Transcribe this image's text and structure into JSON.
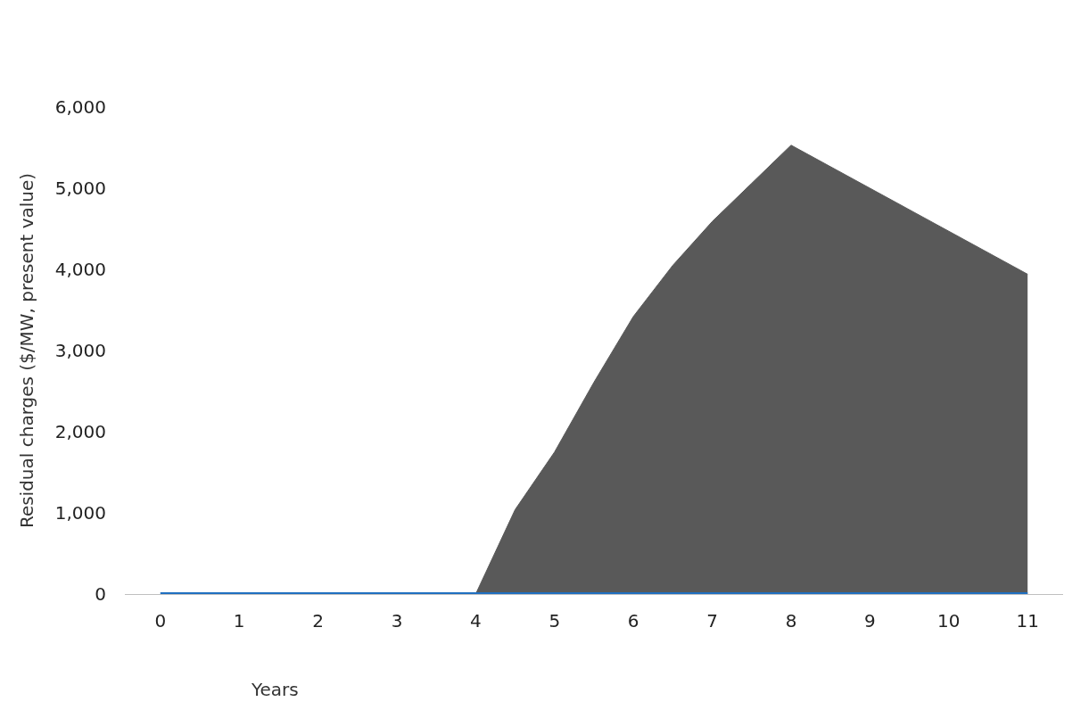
{
  "chart_data": {
    "type": "area",
    "xlabel": "Years",
    "ylabel": "Residual charges ($/MW, present value)",
    "series": [
      {
        "color": "#595959",
        "x": [
          4,
          4.5,
          5,
          5.5,
          6,
          6.5,
          7,
          7.5,
          8,
          9,
          10,
          11
        ],
        "values": [
          0,
          1040,
          1750,
          2610,
          3420,
          4050,
          4590,
          5060,
          5530,
          5000,
          4470,
          3940
        ]
      },
      {
        "type": "line",
        "color": "#1f6fc0",
        "x": [
          0,
          1,
          2,
          3,
          4,
          5,
          6,
          7,
          8,
          9,
          10,
          11
        ],
        "values": [
          0,
          0,
          0,
          0,
          0,
          0,
          0,
          0,
          0,
          0,
          0,
          0
        ]
      }
    ],
    "xlim": [
      -0.45,
      11.45
    ],
    "xticks": [
      0,
      1,
      2,
      3,
      4,
      5,
      6,
      7,
      8,
      9,
      10,
      11
    ],
    "ylim": [
      0,
      6000
    ],
    "yticks": [
      {
        "value": 0,
        "label": "0"
      },
      {
        "value": 1000,
        "label": "1,000"
      },
      {
        "value": 2000,
        "label": "2,000"
      },
      {
        "value": 3000,
        "label": "3,000"
      },
      {
        "value": 4000,
        "label": "4,000"
      },
      {
        "value": 5000,
        "label": "5,000"
      },
      {
        "value": 6000,
        "label": "6,000"
      }
    ],
    "tick_labels": "xy"
  }
}
